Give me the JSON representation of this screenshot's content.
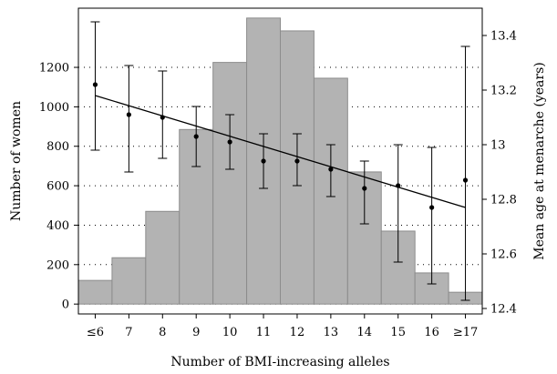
{
  "chart_data": {
    "type": "bar",
    "xlabel": "Number of BMI-increasing alleles",
    "ylabel_left": "Number of women",
    "ylabel_right": "Mean age at menarche (years)",
    "categories": [
      "≤6",
      "7",
      "8",
      "9",
      "10",
      "11",
      "12",
      "13",
      "14",
      "15",
      "16",
      "≥17"
    ],
    "series": [
      {
        "type": "bar",
        "axis": "left",
        "values": [
          120,
          235,
          470,
          885,
          1225,
          1450,
          1385,
          1145,
          670,
          370,
          158,
          60
        ]
      },
      {
        "type": "point_errorbar",
        "axis": "right",
        "values": [
          13.22,
          13.11,
          13.1,
          13.03,
          13.01,
          12.94,
          12.94,
          12.91,
          12.84,
          12.85,
          12.77,
          12.87
        ],
        "lower": [
          12.98,
          12.9,
          12.95,
          12.92,
          12.91,
          12.84,
          12.85,
          12.81,
          12.71,
          12.57,
          12.49,
          12.43
        ],
        "upper": [
          13.45,
          13.29,
          13.27,
          13.14,
          13.11,
          13.04,
          13.04,
          13.0,
          12.94,
          13.0,
          12.99,
          13.36
        ]
      },
      {
        "type": "trend_line",
        "axis": "right",
        "start": 13.18,
        "end": 12.77
      }
    ],
    "ylim_left": [
      -50,
      1500
    ],
    "ylim_right": [
      12.38,
      13.5
    ],
    "yticks_left": [
      0,
      200,
      400,
      600,
      800,
      1000,
      1200
    ],
    "yticks_right": [
      12.4,
      12.6,
      12.8,
      13,
      13.2,
      13.4
    ],
    "yticks_right_labels": [
      "12.4",
      "12.6",
      "12.8",
      "13",
      "13.2",
      "13.4"
    ],
    "grid": "dotted horizontal",
    "colors": {
      "bar_fill": "#b3b3b3",
      "bar_stroke": "#8c8c8c",
      "line": "#000000"
    }
  }
}
